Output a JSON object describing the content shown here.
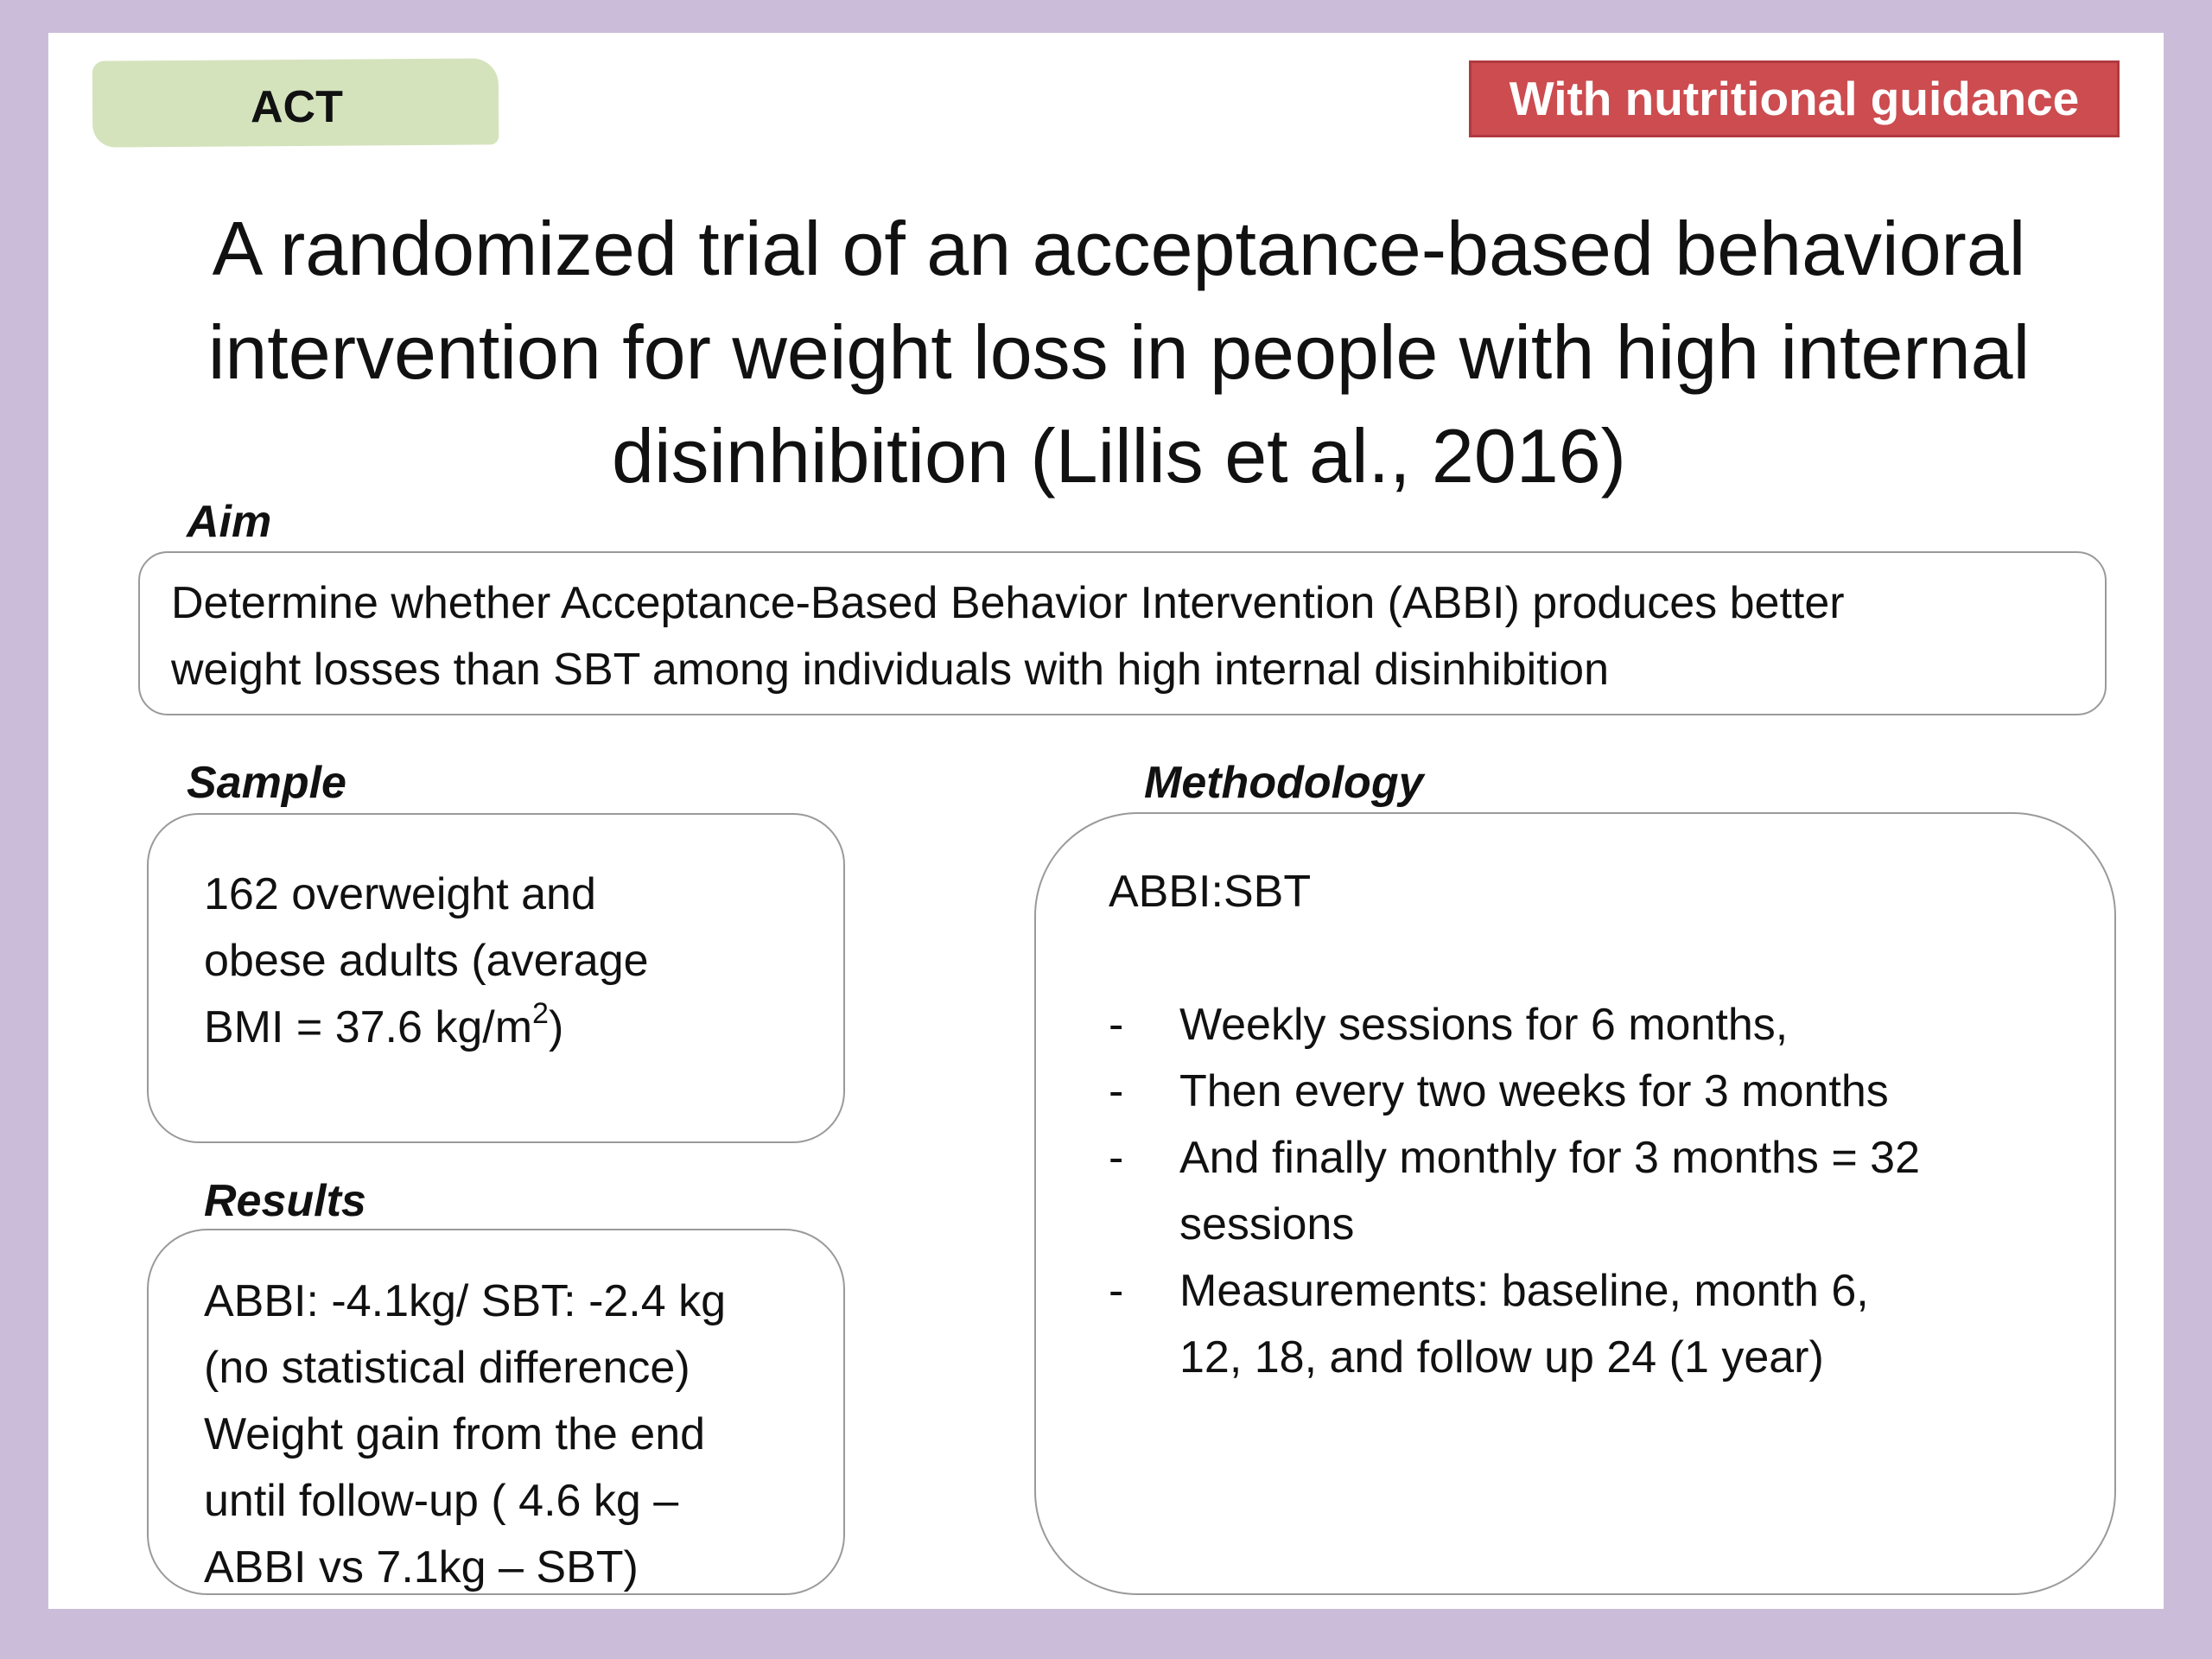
{
  "tag": {
    "label": "ACT",
    "color": "#d5e3bd"
  },
  "badge": {
    "label": "With nutritional guidance",
    "color": "#cc4c50"
  },
  "title": {
    "line1": "A randomized trial of an acceptance-based behavioral",
    "line2": "intervention for weight loss in people with high internal",
    "line3": "disinhibition (Lillis et al., 2016)"
  },
  "aim": {
    "heading": "Aim",
    "line1": "Determine whether Acceptance-Based Behavior Intervention  (ABBI) produces better",
    "line2": "weight losses than SBT among individuals with high internal disinhibition"
  },
  "sample": {
    "heading": "Sample",
    "line1": "162 overweight and",
    "line2": "obese adults (average",
    "line3_pre": "BMI = 37.6 kg/m",
    "line3_sup": "2",
    "line3_post": ")"
  },
  "methodology": {
    "heading": "Methodology",
    "intro": "ABBI:SBT",
    "items": [
      {
        "lines": [
          "Weekly sessions for 6 months,"
        ]
      },
      {
        "lines": [
          "Then every two weeks  for 3 months"
        ]
      },
      {
        "lines": [
          "And finally monthly  for 3 months = 32",
          "sessions"
        ]
      },
      {
        "lines": [
          "Measurements: baseline, month 6,",
          "12, 18, and follow up  24 (1 year)"
        ]
      }
    ],
    "bullet": "-"
  },
  "results": {
    "heading": "Results",
    "line1": "ABBI: -4.1kg/ SBT: -2.4 kg",
    "line2": "(no statistical difference)",
    "line3": "Weight gain from the end",
    "line4": "until follow-up ( 4.6 kg –",
    "line5": "ABBI vs 7.1kg – SBT)"
  },
  "colors": {
    "page_background": "#cbbdd9",
    "slide_background": "#ffffff"
  }
}
